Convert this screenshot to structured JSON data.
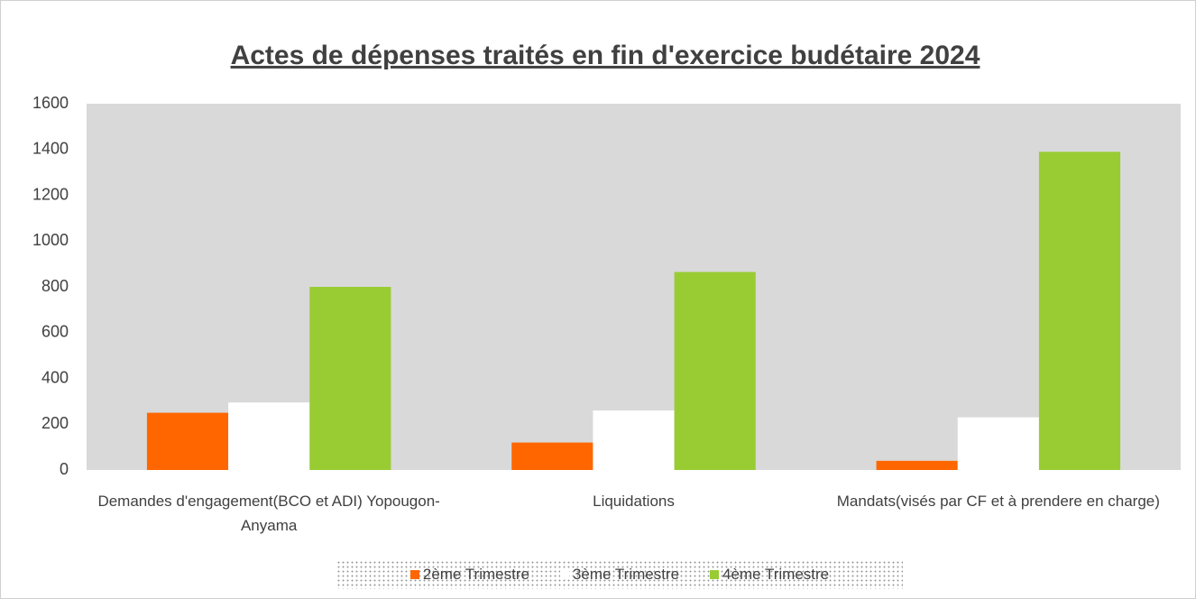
{
  "chart_data": {
    "type": "bar",
    "title": "Actes de dépenses traités en fin d'exercice budétaire 2024",
    "categories": [
      "Demandes d'engagement(BCO et ADI) Yopougon-Anyama",
      "Liquidations",
      "Mandats(visés par CF et à prendere en charge)"
    ],
    "series": [
      {
        "name": "2ème Trimestre",
        "color": "#ff6600",
        "values": [
          250,
          120,
          40
        ]
      },
      {
        "name": "3ème Trimestre",
        "color": "#ffffff",
        "values": [
          295,
          260,
          230
        ]
      },
      {
        "name": "4ème Trimestre",
        "color": "#99cc33",
        "values": [
          800,
          865,
          1390
        ]
      }
    ],
    "ylim": [
      0,
      1600
    ],
    "yticks": [
      0,
      200,
      400,
      600,
      800,
      1000,
      1200,
      1400,
      1600
    ],
    "grid": false,
    "legend": "bottom",
    "plot_background": "#d9d9d9"
  }
}
